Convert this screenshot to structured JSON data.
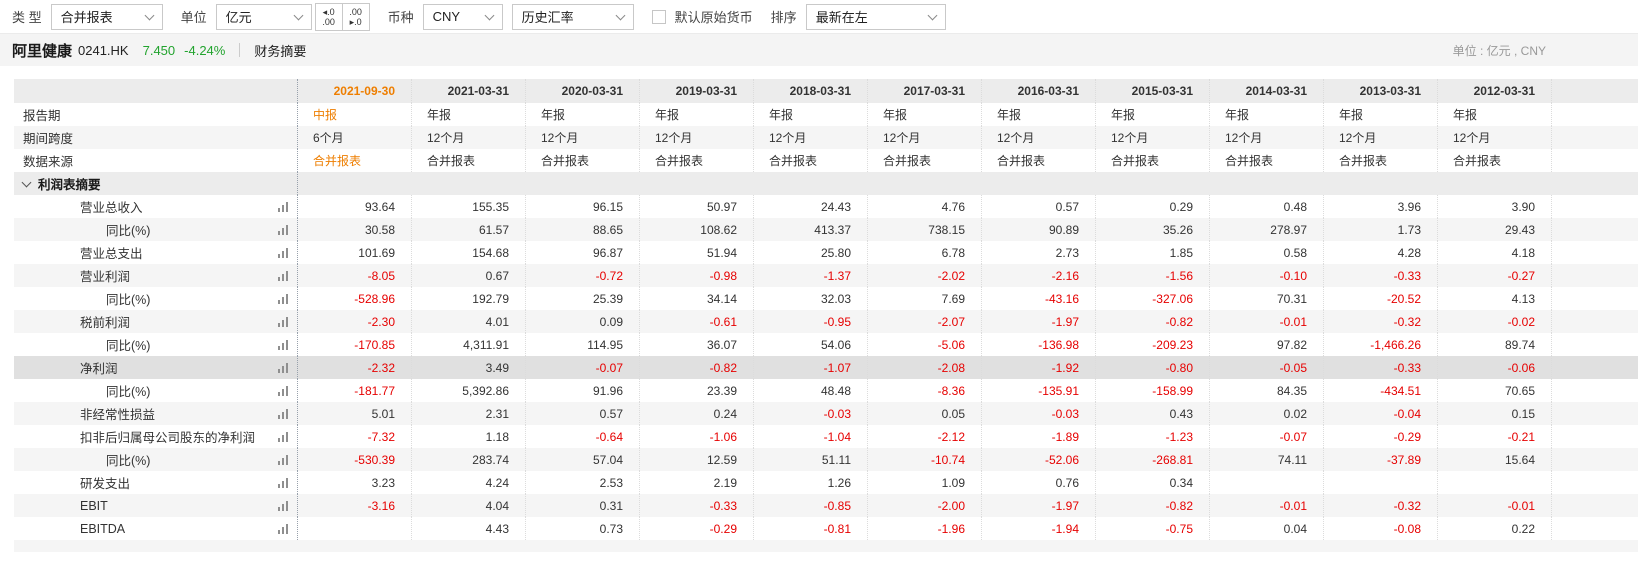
{
  "colors": {
    "accent_orange": "#ee7e00",
    "negative_red": "#e60000",
    "price_green": "#22a32e"
  },
  "toolbar": {
    "type_label": "类 型",
    "type_value": "合并报表",
    "unit_label": "单位",
    "unit_value": "亿元",
    "dec_left_top": "◂.0",
    "dec_left_bottom": ".00",
    "dec_right_top": ".00",
    "dec_right_bottom": "▸.0",
    "currency_label": "币种",
    "currency_value": "CNY",
    "fx_value": "历史汇率",
    "original_currency_label": "默认原始货币",
    "sort_label": "排序",
    "sort_value": "最新在左"
  },
  "header": {
    "stock_name": "阿里健康",
    "stock_code": "0241.HK",
    "price": "7.450",
    "change": "-4.24%",
    "tab_financial_summary": "财务摘要",
    "unit_note": "单位 : 亿元 , CNY"
  },
  "table": {
    "columns": [
      "2021-09-30",
      "2021-03-31",
      "2020-03-31",
      "2019-03-31",
      "2018-03-31",
      "2017-03-31",
      "2016-03-31",
      "2015-03-31",
      "2014-03-31",
      "2013-03-31",
      "2012-03-31"
    ],
    "rows": [
      {
        "label": "报告期",
        "type": "text",
        "indent": 0,
        "accent_first": true,
        "values": [
          "中报",
          "年报",
          "年报",
          "年报",
          "年报",
          "年报",
          "年报",
          "年报",
          "年报",
          "年报",
          "年报"
        ]
      },
      {
        "label": "期间跨度",
        "type": "text",
        "indent": 0,
        "values": [
          "6个月",
          "12个月",
          "12个月",
          "12个月",
          "12个月",
          "12个月",
          "12个月",
          "12个月",
          "12个月",
          "12个月",
          "12个月"
        ]
      },
      {
        "label": "数据来源",
        "type": "text",
        "indent": 0,
        "accent_first": true,
        "values": [
          "合并报表",
          "合并报表",
          "合并报表",
          "合并报表",
          "合并报表",
          "合并报表",
          "合并报表",
          "合并报表",
          "合并报表",
          "合并报表",
          "合并报表"
        ]
      },
      {
        "label": "利润表摘要",
        "type": "section",
        "indent": 0
      },
      {
        "label": "营业总收入",
        "type": "num",
        "indent": 1,
        "values": [
          "93.64",
          "155.35",
          "96.15",
          "50.97",
          "24.43",
          "4.76",
          "0.57",
          "0.29",
          "0.48",
          "3.96",
          "3.90"
        ]
      },
      {
        "label": "同比(%)",
        "type": "num",
        "indent": 2,
        "values": [
          "30.58",
          "61.57",
          "88.65",
          "108.62",
          "413.37",
          "738.15",
          "90.89",
          "35.26",
          "278.97",
          "1.73",
          "29.43"
        ]
      },
      {
        "label": "营业总支出",
        "type": "num",
        "indent": 1,
        "values": [
          "101.69",
          "154.68",
          "96.87",
          "51.94",
          "25.80",
          "6.78",
          "2.73",
          "1.85",
          "0.58",
          "4.28",
          "4.18"
        ]
      },
      {
        "label": "营业利润",
        "type": "num",
        "indent": 1,
        "values": [
          "-8.05",
          "0.67",
          "-0.72",
          "-0.98",
          "-1.37",
          "-2.02",
          "-2.16",
          "-1.56",
          "-0.10",
          "-0.33",
          "-0.27"
        ]
      },
      {
        "label": "同比(%)",
        "type": "num",
        "indent": 2,
        "values": [
          "-528.96",
          "192.79",
          "25.39",
          "34.14",
          "32.03",
          "7.69",
          "-43.16",
          "-327.06",
          "70.31",
          "-20.52",
          "4.13"
        ]
      },
      {
        "label": "税前利润",
        "type": "num",
        "indent": 1,
        "values": [
          "-2.30",
          "4.01",
          "0.09",
          "-0.61",
          "-0.95",
          "-2.07",
          "-1.97",
          "-0.82",
          "-0.01",
          "-0.32",
          "-0.02"
        ]
      },
      {
        "label": "同比(%)",
        "type": "num",
        "indent": 2,
        "values": [
          "-170.85",
          "4,311.91",
          "114.95",
          "36.07",
          "54.06",
          "-5.06",
          "-136.98",
          "-209.23",
          "97.82",
          "-1,466.26",
          "89.74"
        ]
      },
      {
        "label": "净利润",
        "type": "num",
        "indent": 1,
        "highlight": true,
        "values": [
          "-2.32",
          "3.49",
          "-0.07",
          "-0.82",
          "-1.07",
          "-2.08",
          "-1.92",
          "-0.80",
          "-0.05",
          "-0.33",
          "-0.06"
        ]
      },
      {
        "label": "同比(%)",
        "type": "num",
        "indent": 2,
        "values": [
          "-181.77",
          "5,392.86",
          "91.96",
          "23.39",
          "48.48",
          "-8.36",
          "-135.91",
          "-158.99",
          "84.35",
          "-434.51",
          "70.65"
        ]
      },
      {
        "label": "非经常性损益",
        "type": "num",
        "indent": 1,
        "values": [
          "5.01",
          "2.31",
          "0.57",
          "0.24",
          "-0.03",
          "0.05",
          "-0.03",
          "0.43",
          "0.02",
          "-0.04",
          "0.15"
        ]
      },
      {
        "label": "扣非后归属母公司股东的净利润",
        "type": "num",
        "indent": 1,
        "values": [
          "-7.32",
          "1.18",
          "-0.64",
          "-1.06",
          "-1.04",
          "-2.12",
          "-1.89",
          "-1.23",
          "-0.07",
          "-0.29",
          "-0.21"
        ]
      },
      {
        "label": "同比(%)",
        "type": "num",
        "indent": 2,
        "values": [
          "-530.39",
          "283.74",
          "57.04",
          "12.59",
          "51.11",
          "-10.74",
          "-52.06",
          "-268.81",
          "74.11",
          "-37.89",
          "15.64"
        ]
      },
      {
        "label": "研发支出",
        "type": "num",
        "indent": 1,
        "values": [
          "3.23",
          "4.24",
          "2.53",
          "2.19",
          "1.26",
          "1.09",
          "0.76",
          "0.34",
          "",
          "",
          ""
        ]
      },
      {
        "label": "EBIT",
        "type": "num",
        "indent": 1,
        "values": [
          "-3.16",
          "4.04",
          "0.31",
          "-0.33",
          "-0.85",
          "-2.00",
          "-1.97",
          "-0.82",
          "-0.01",
          "-0.32",
          "-0.01"
        ]
      },
      {
        "label": "EBITDA",
        "type": "num",
        "indent": 1,
        "values": [
          "",
          "4.43",
          "0.73",
          "-0.29",
          "-0.81",
          "-1.96",
          "-1.94",
          "-0.75",
          "0.04",
          "-0.08",
          "0.22"
        ]
      }
    ]
  }
}
